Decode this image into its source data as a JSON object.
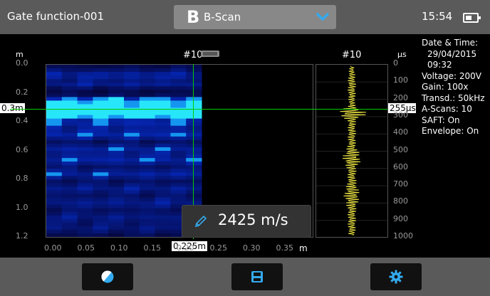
{
  "header": {
    "title": "Gate function-001",
    "mode_icon": "B",
    "mode_label": "B-Scan",
    "time": "15:54"
  },
  "side_info": [
    "Date & Time:",
    "29/04/2015",
    "09:32",
    "Voltage: 200V",
    "Gain: 100x",
    "Transd.: 50kHz",
    "A-Scans: 10",
    "SAFT: On",
    "Envelope: On"
  ],
  "bscan": {
    "y_unit": "m",
    "y_ticks": [
      "0.0",
      "0.2",
      "0.4",
      "0.6",
      "0.8",
      "1.0",
      "1.2"
    ],
    "x_unit": "m",
    "x_ticks": [
      "0.00",
      "0.05",
      "0.10",
      "0.15",
      "0.20",
      "0.25",
      "0.30",
      "0.35"
    ],
    "scan_label": "#10",
    "cursor_depth": "0.3m",
    "cursor_position": "0.225m",
    "sound_speed": "2425 m/s"
  },
  "ascan": {
    "unit": "µs",
    "label": "#10",
    "ticks": [
      "0",
      "100",
      "200",
      "300",
      "400",
      "500",
      "600",
      "700",
      "800",
      "900",
      "1000"
    ],
    "cursor_time": "255µs"
  },
  "toolbar": {
    "buttons": [
      {
        "name": "palette-button",
        "icon": "contrast-icon"
      },
      {
        "name": "save-button",
        "icon": "floppy-disk-icon"
      },
      {
        "name": "settings-button",
        "icon": "gear-icon"
      }
    ]
  },
  "colors": {
    "bar": "#5a5a5a",
    "accent": "#33aaee",
    "cursor": "#00cc00",
    "trace": "#e8e040"
  }
}
